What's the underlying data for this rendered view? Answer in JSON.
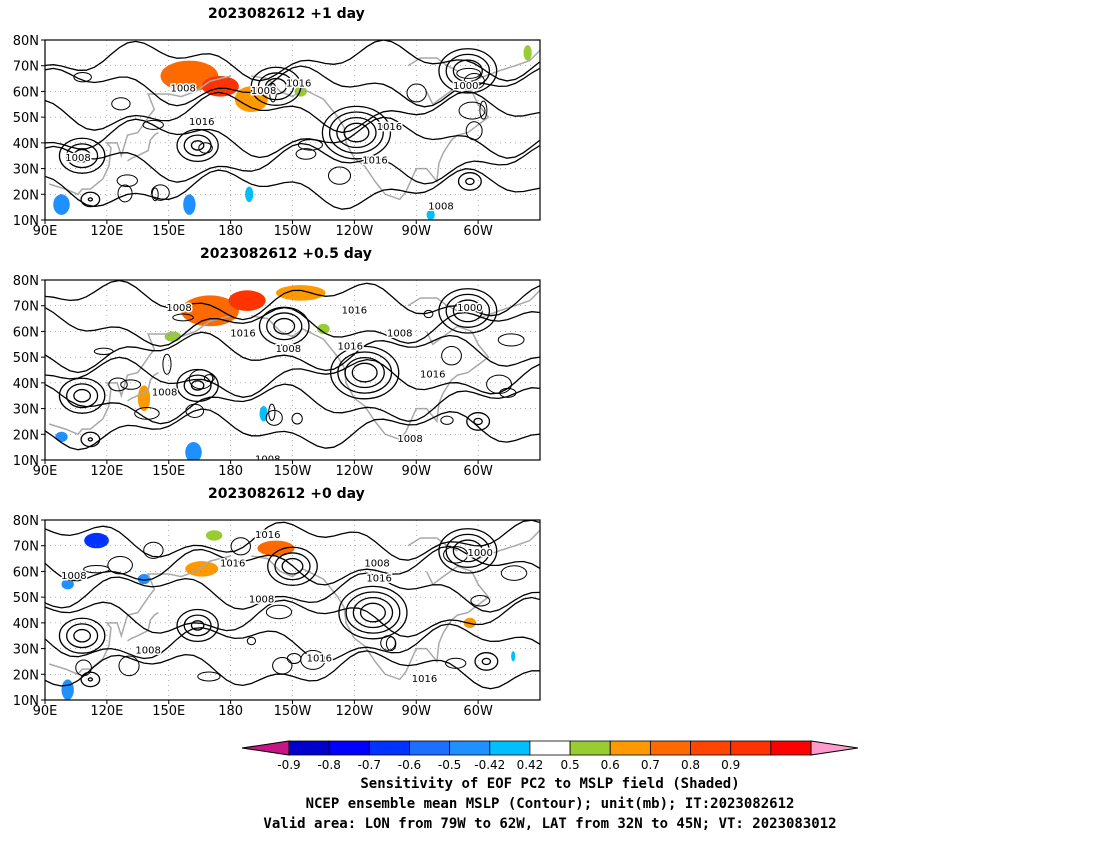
{
  "panels": [
    {
      "title": "2023082612 +1 day",
      "lat_labels": [
        "80N",
        "70N",
        "60N",
        "50N",
        "40N",
        "30N",
        "20N",
        "10N"
      ],
      "lon_labels": [
        "90E",
        "120E",
        "150E",
        "180",
        "150W",
        "120W",
        "90W",
        "60W"
      ],
      "contour_labels": [
        {
          "text": "1008",
          "lon": 157,
          "lat": 60
        },
        {
          "text": "1008",
          "lon": 196,
          "lat": 59
        },
        {
          "text": "1016",
          "lon": 213,
          "lat": 62
        },
        {
          "text": "1000",
          "lon": 294,
          "lat": 61
        },
        {
          "text": "1016",
          "lon": 166,
          "lat": 47
        },
        {
          "text": "1016",
          "lon": 257,
          "lat": 45
        },
        {
          "text": "1008",
          "lon": 106,
          "lat": 33
        },
        {
          "text": "1016",
          "lon": 250,
          "lat": 32
        },
        {
          "text": "1008",
          "lon": 282,
          "lat": 14
        }
      ],
      "shading": [
        {
          "color": "#ff6a00",
          "lon": 160,
          "lat": 66,
          "rx": 14,
          "ry": 6
        },
        {
          "color": "#ff3300",
          "lon": 175,
          "lat": 62,
          "rx": 9,
          "ry": 4
        },
        {
          "color": "#ff9900",
          "lon": 190,
          "lat": 57,
          "rx": 8,
          "ry": 5
        },
        {
          "color": "#99cc33",
          "lon": 214,
          "lat": 60,
          "rx": 3,
          "ry": 2
        },
        {
          "color": "#1e90ff",
          "lon": 160,
          "lat": 16,
          "rx": 3,
          "ry": 4
        },
        {
          "color": "#00bfff",
          "lon": 189,
          "lat": 20,
          "rx": 2,
          "ry": 3
        },
        {
          "color": "#1e90ff",
          "lon": 98,
          "lat": 16,
          "rx": 4,
          "ry": 4
        },
        {
          "color": "#00bfff",
          "lon": 277,
          "lat": 12,
          "rx": 2,
          "ry": 2
        },
        {
          "color": "#99cc33",
          "lon": 324,
          "lat": 75,
          "rx": 2,
          "ry": 3
        }
      ]
    },
    {
      "title": "2023082612 +0.5 day",
      "lat_labels": [
        "80N",
        "70N",
        "60N",
        "50N",
        "40N",
        "30N",
        "20N",
        "10N"
      ],
      "lon_labels": [
        "90E",
        "120E",
        "150E",
        "180",
        "150W",
        "120W",
        "90W",
        "60W"
      ],
      "contour_labels": [
        {
          "text": "1008",
          "lon": 155,
          "lat": 68
        },
        {
          "text": "1016",
          "lon": 240,
          "lat": 67
        },
        {
          "text": "1000",
          "lon": 296,
          "lat": 68
        },
        {
          "text": "1016",
          "lon": 186,
          "lat": 58
        },
        {
          "text": "1008",
          "lon": 208,
          "lat": 52
        },
        {
          "text": "1016",
          "lon": 238,
          "lat": 53
        },
        {
          "text": "1008",
          "lon": 262,
          "lat": 58
        },
        {
          "text": "1016",
          "lon": 278,
          "lat": 42
        },
        {
          "text": "1008",
          "lon": 148,
          "lat": 35
        },
        {
          "text": "1008",
          "lon": 267,
          "lat": 17
        },
        {
          "text": "1008",
          "lon": 198,
          "lat": 9
        }
      ],
      "shading": [
        {
          "color": "#ff6a00",
          "lon": 170,
          "lat": 68,
          "rx": 14,
          "ry": 6
        },
        {
          "color": "#ff3300",
          "lon": 188,
          "lat": 72,
          "rx": 9,
          "ry": 4
        },
        {
          "color": "#ff9900",
          "lon": 214,
          "lat": 75,
          "rx": 12,
          "ry": 3
        },
        {
          "color": "#99cc33",
          "lon": 152,
          "lat": 58,
          "rx": 4,
          "ry": 2
        },
        {
          "color": "#ff9900",
          "lon": 138,
          "lat": 34,
          "rx": 3,
          "ry": 5
        },
        {
          "color": "#1e90ff",
          "lon": 162,
          "lat": 13,
          "rx": 4,
          "ry": 4
        },
        {
          "color": "#00bfff",
          "lon": 196,
          "lat": 28,
          "rx": 2,
          "ry": 3
        },
        {
          "color": "#1e90ff",
          "lon": 98,
          "lat": 19,
          "rx": 3,
          "ry": 2
        },
        {
          "color": "#99cc33",
          "lon": 225,
          "lat": 61,
          "rx": 3,
          "ry": 2
        }
      ]
    },
    {
      "title": "2023082612 +0 day",
      "lat_labels": [
        "80N",
        "70N",
        "60N",
        "50N",
        "40N",
        "30N",
        "20N",
        "10N"
      ],
      "lon_labels": [
        "90E",
        "120E",
        "150E",
        "180",
        "150W",
        "120W",
        "90W",
        "60W"
      ],
      "contour_labels": [
        {
          "text": "1016",
          "lon": 198,
          "lat": 73
        },
        {
          "text": "1016",
          "lon": 181,
          "lat": 62
        },
        {
          "text": "1008",
          "lon": 104,
          "lat": 57
        },
        {
          "text": "1008",
          "lon": 195,
          "lat": 48
        },
        {
          "text": "1008",
          "lon": 251,
          "lat": 62
        },
        {
          "text": "1016",
          "lon": 252,
          "lat": 56
        },
        {
          "text": "1000",
          "lon": 301,
          "lat": 66
        },
        {
          "text": "1008",
          "lon": 140,
          "lat": 28
        },
        {
          "text": "1016",
          "lon": 223,
          "lat": 25
        },
        {
          "text": "1016",
          "lon": 274,
          "lat": 17
        }
      ],
      "shading": [
        {
          "color": "#0033ff",
          "lon": 115,
          "lat": 72,
          "rx": 6,
          "ry": 3
        },
        {
          "color": "#1e90ff",
          "lon": 101,
          "lat": 55,
          "rx": 3,
          "ry": 2
        },
        {
          "color": "#ff9900",
          "lon": 166,
          "lat": 61,
          "rx": 8,
          "ry": 3
        },
        {
          "color": "#ff6a00",
          "lon": 202,
          "lat": 69,
          "rx": 9,
          "ry": 3
        },
        {
          "color": "#99cc33",
          "lon": 172,
          "lat": 74,
          "rx": 4,
          "ry": 2
        },
        {
          "color": "#ff9900",
          "lon": 296,
          "lat": 40,
          "rx": 3,
          "ry": 2
        },
        {
          "color": "#1e90ff",
          "lon": 101,
          "lat": 14,
          "rx": 3,
          "ry": 4
        },
        {
          "color": "#00bfff",
          "lon": 317,
          "lat": 27,
          "rx": 1,
          "ry": 2
        },
        {
          "color": "#1e90ff",
          "lon": 138,
          "lat": 57,
          "rx": 3,
          "ry": 2
        }
      ]
    }
  ],
  "colorbar": {
    "labels": [
      "-0.9",
      "-0.8",
      "-0.7",
      "-0.6",
      "-0.5",
      "-0.42",
      "0.42",
      "0.5",
      "0.6",
      "0.7",
      "0.8",
      "0.9"
    ],
    "colors": [
      "#c71585",
      "#0000cd",
      "#0000ff",
      "#0033ff",
      "#1e6fff",
      "#1e90ff",
      "#00bfff",
      "#ffffff",
      "#99cc33",
      "#ff9900",
      "#ff6a00",
      "#ff4500",
      "#ff3300",
      "#ff0000",
      "#ff9acd"
    ]
  },
  "caption": {
    "line1": "Sensitivity of EOF PC2 to MSLP field (Shaded)",
    "line2": "NCEP ensemble mean MSLP (Contour); unit(mb); IT:2023082612",
    "line3": "Valid area: LON from 79W to 62W, LAT from 32N to 45N; VT: 2023083012"
  }
}
